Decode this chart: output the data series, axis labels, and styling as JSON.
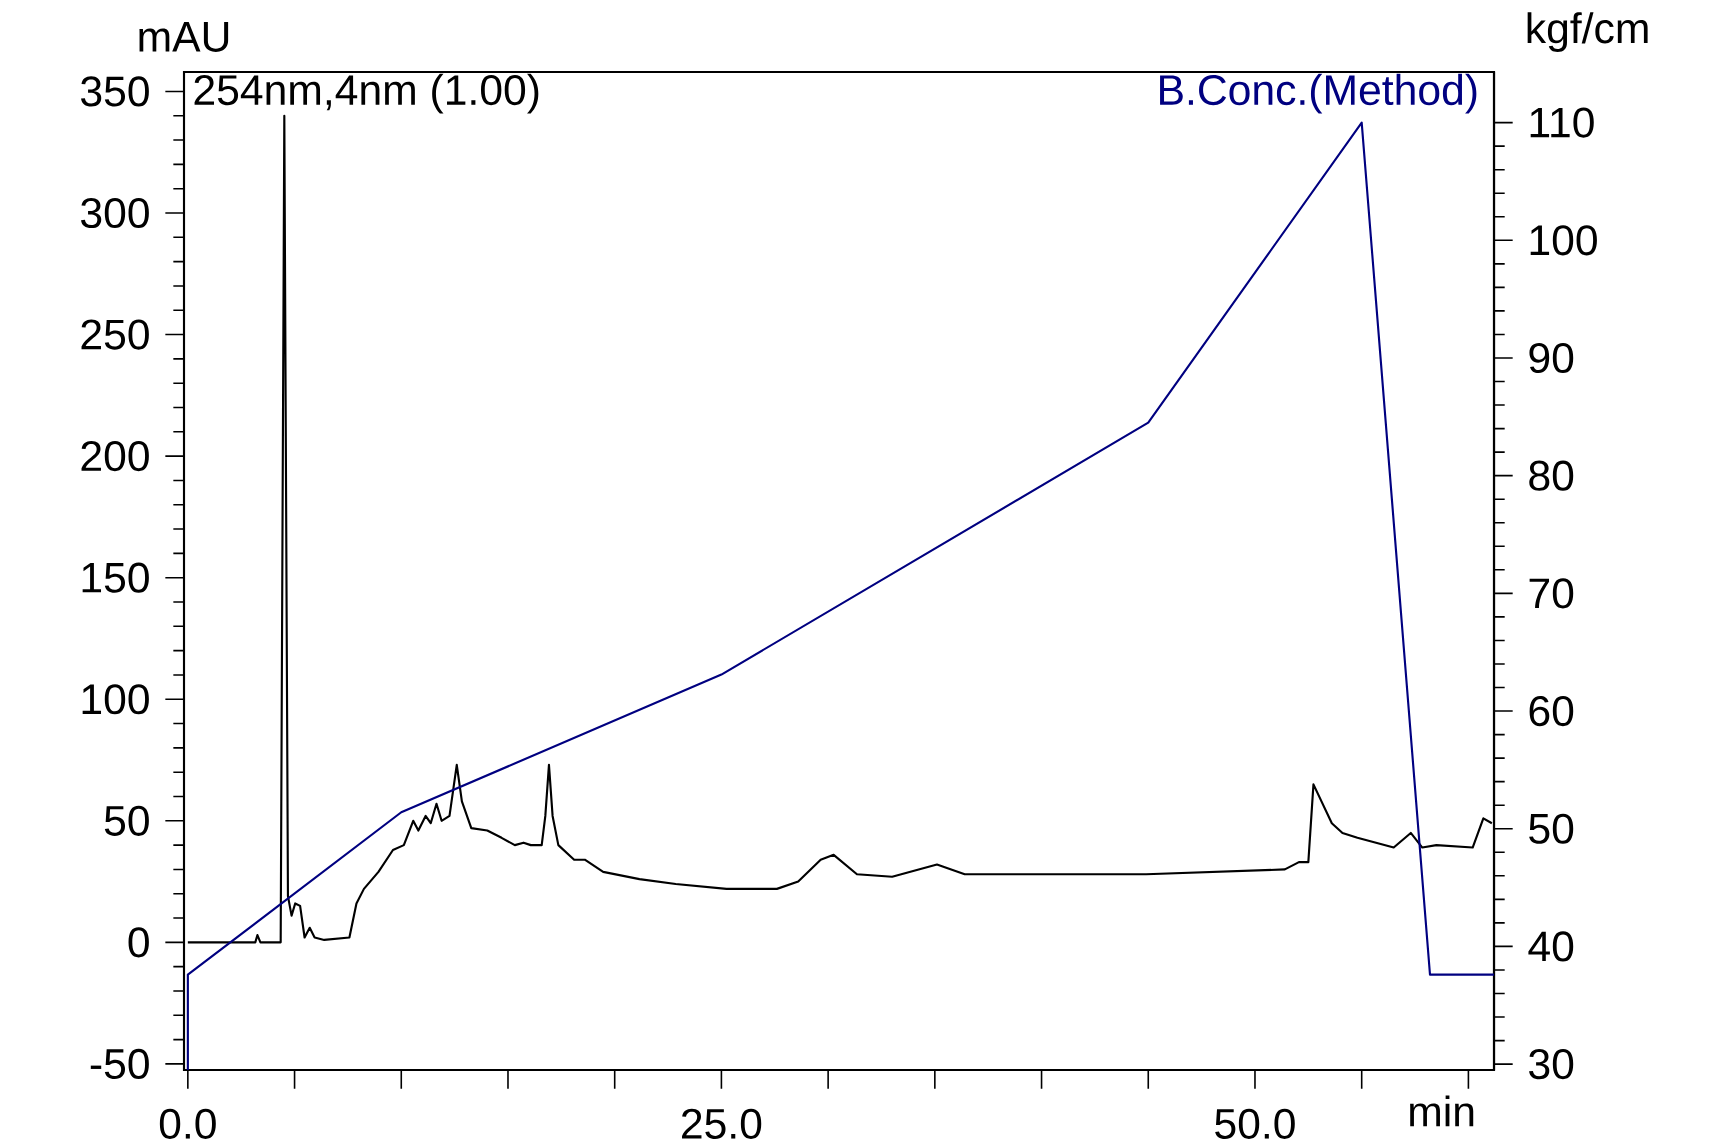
{
  "chart_data": {
    "type": "line",
    "xlabel": "min",
    "ylabel": "mAU",
    "y2label": "kgf/cm",
    "xlim": [
      -0.18,
      61.2
    ],
    "ylim": [
      -52.5,
      358
    ],
    "y2lim": [
      29.5,
      114.3
    ],
    "xticks": [
      {
        "value": 0,
        "label": "0.0"
      },
      {
        "value": 5,
        "label": null
      },
      {
        "value": 10,
        "label": null
      },
      {
        "value": 15,
        "label": null
      },
      {
        "value": 20,
        "label": null
      },
      {
        "value": 25,
        "label": "25.0"
      },
      {
        "value": 30,
        "label": null
      },
      {
        "value": 35,
        "label": null
      },
      {
        "value": 40,
        "label": null
      },
      {
        "value": 45,
        "label": null
      },
      {
        "value": 50,
        "label": "50.0"
      },
      {
        "value": 55,
        "label": null
      },
      {
        "value": 60,
        "label": null
      }
    ],
    "yticks": [
      -50,
      0,
      50,
      100,
      150,
      200,
      250,
      300,
      350
    ],
    "y2ticks": [
      30,
      40,
      50,
      60,
      70,
      80,
      90,
      100,
      110
    ],
    "legend": "top",
    "grid": false,
    "series": [
      {
        "name": "254nm,4nm (1.00)",
        "color": "#000000",
        "axis": "y",
        "x": [
          0,
          3.16,
          3.26,
          3.4,
          4.35,
          4.52,
          4.69,
          4.86,
          5.03,
          5.26,
          5.47,
          5.71,
          5.94,
          6.39,
          7.57,
          7.9,
          8.25,
          8.93,
          9.61,
          10.12,
          10.56,
          10.8,
          11.14,
          11.38,
          11.65,
          11.89,
          12.26,
          12.6,
          12.84,
          13.28,
          14.03,
          14.7,
          15.32,
          15.73,
          16.07,
          16.58,
          16.75,
          16.92,
          17.09,
          17.36,
          18.1,
          18.6,
          19.46,
          21.16,
          22.86,
          25.24,
          27.6,
          28.6,
          29.65,
          30.26,
          31.35,
          33.0,
          35.1,
          36.4,
          44.9,
          51.4,
          52.06,
          52.5,
          52.74,
          53.6,
          54.1,
          54.8,
          56.5,
          57.3,
          57.84,
          58.5,
          60.2,
          60.7,
          61.1
        ],
        "values": [
          0,
          0,
          3,
          0,
          0,
          340,
          19,
          11,
          16,
          15,
          2,
          6,
          2,
          1,
          2,
          16,
          22,
          29,
          38,
          40,
          50,
          46,
          52,
          49,
          57,
          50,
          52,
          73,
          58,
          47,
          46,
          43,
          40,
          41,
          40,
          40,
          52,
          73,
          52,
          40,
          34,
          34,
          29,
          26,
          24,
          22,
          22,
          25,
          34,
          36,
          28,
          27,
          32,
          28,
          28,
          30,
          33,
          33,
          65,
          49,
          45,
          43,
          39,
          45,
          39,
          40,
          39,
          51,
          49
        ]
      },
      {
        "name": "B.Conc.(Method)",
        "color": "#000080",
        "axis": "y2",
        "x": [
          0,
          0,
          10,
          25,
          45,
          55,
          58.2,
          61.2
        ],
        "values": [
          29.5,
          37.6,
          51.4,
          63.1,
          84.5,
          110,
          37.6,
          37.6
        ]
      }
    ]
  }
}
